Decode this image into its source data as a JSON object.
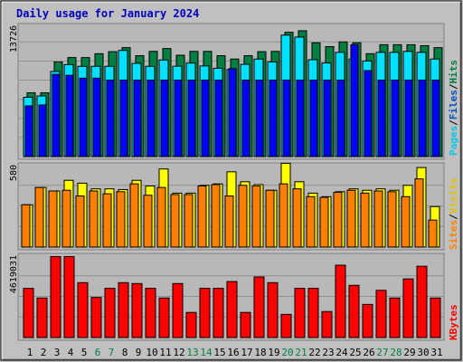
{
  "chart_data": {
    "type": "bar",
    "title": "Daily usage for January 2024",
    "categories": [
      "1",
      "2",
      "3",
      "4",
      "5",
      "6",
      "7",
      "8",
      "9",
      "10",
      "11",
      "12",
      "13",
      "14",
      "15",
      "16",
      "17",
      "18",
      "19",
      "20",
      "21",
      "22",
      "23",
      "24",
      "25",
      "26",
      "27",
      "28",
      "29",
      "30",
      "31"
    ],
    "weekend_days": [
      6,
      7,
      13,
      14,
      20,
      21,
      27,
      28
    ],
    "panels": [
      {
        "id": "hits-files-pages",
        "ymax_label": "13726",
        "legend": [
          "Pages",
          "Files",
          "Hits"
        ],
        "series": [
          {
            "name": "Hits",
            "color": "#008040",
            "values": [
              6670,
              6670,
              9900,
              10350,
              10350,
              10760,
              10970,
              11390,
              10550,
              11000,
              11300,
              10600,
              11000,
              11000,
              10550,
              10200,
              10550,
              10970,
              11000,
              13000,
              13160,
              11900,
              11500,
              11990,
              11900,
              10760,
              11700,
              11700,
              11700,
              11600,
              11390
            ]
          },
          {
            "name": "Files",
            "color": "#00E0FF",
            "values": [
              6200,
              6340,
              8900,
              9620,
              9440,
              9440,
              9440,
              11100,
              9750,
              9440,
              10100,
              9450,
              9780,
              9480,
              9240,
              9100,
              9650,
              10200,
              9900,
              12700,
              12500,
              10130,
              9790,
              10900,
              10200,
              10000,
              10900,
              10900,
              11000,
              10900,
              10200
            ]
          },
          {
            "name": "Pages",
            "color": "#0000FF",
            "values": [
              5300,
              5400,
              8600,
              8500,
              8200,
              8200,
              8000,
              8000,
              8000,
              8000,
              8000,
              8000,
              8000,
              8000,
              8000,
              9200,
              8000,
              8000,
              8000,
              8000,
              8000,
              8000,
              8000,
              8000,
              11700,
              9000,
              8000,
              8000,
              8000,
              8000,
              8000
            ]
          }
        ]
      },
      {
        "id": "visits-sites",
        "ymax_label": "580",
        "legend": [
          "Sites",
          "Visits"
        ],
        "series": [
          {
            "name": "Visits",
            "color": "#FFFF00",
            "values": [
              298,
              420,
              395,
              470,
              450,
              410,
              410,
              405,
              470,
              430,
              550,
              380,
              380,
              435,
              445,
              530,
              460,
              440,
              400,
              590,
              460,
              380,
              355,
              390,
              410,
              400,
              410,
              400,
              435,
              560,
              285
            ]
          },
          {
            "name": "Sites",
            "color": "#FF8000",
            "values": [
              298,
              420,
              395,
              400,
              360,
              395,
              375,
              390,
              445,
              365,
              420,
              370,
              370,
              430,
              440,
              360,
              435,
              430,
              400,
              445,
              410,
              355,
              350,
              385,
              400,
              380,
              395,
              390,
              355,
              480,
              190
            ]
          }
        ]
      },
      {
        "id": "kbytes",
        "ymax_label": "4619031",
        "legend": [
          "KBytes"
        ],
        "series": [
          {
            "name": "KBytes",
            "color": "#FF0000",
            "values": [
              2760,
              2220,
              4540,
              4540,
              3080,
              2250,
              2760,
              3080,
              3030,
              2760,
              2220,
              3030,
              1410,
              2760,
              2760,
              3140,
              1410,
              3400,
              3080,
              1300,
              2760,
              2760,
              1460,
              4060,
              2930,
              1860,
              2650,
              2220,
              3290,
              4000,
              2220
            ]
          }
        ]
      }
    ]
  }
}
